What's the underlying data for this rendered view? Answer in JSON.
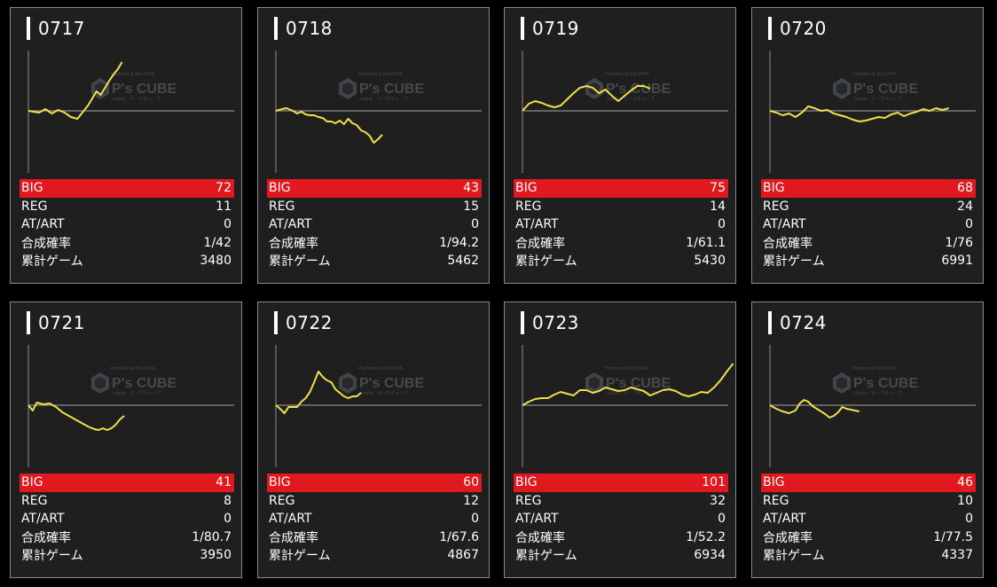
{
  "row_labels": [
    "BIG",
    "REG",
    "AT/ART",
    "合成確率",
    "累計ゲーム"
  ],
  "watermark": {
    "text": "P's CUBE",
    "small_top": "Pachinko & Slot DATA",
    "small_bottom": "ndata　ピーズキューブ"
  },
  "colors": {
    "line": "#f0e04a",
    "big_row": "#e1191e",
    "card_bg": "#1f1f1f",
    "border": "#8a8a8a"
  },
  "machines": [
    {
      "id": "0717",
      "stats": [
        "72",
        "11",
        "0",
        "1/42",
        "3480"
      ],
      "line": [
        [
          0,
          0
        ],
        [
          5,
          2
        ],
        [
          8,
          -2
        ],
        [
          11,
          3
        ],
        [
          14,
          -1
        ],
        [
          17,
          2
        ],
        [
          20,
          7
        ],
        [
          23,
          9
        ],
        [
          26,
          0
        ],
        [
          28,
          -6
        ],
        [
          30,
          -14
        ],
        [
          32,
          -22
        ],
        [
          34,
          -18
        ],
        [
          36,
          -26
        ],
        [
          38,
          -34
        ],
        [
          40,
          -41
        ],
        [
          42,
          -47
        ],
        [
          44,
          -55
        ]
      ]
    },
    {
      "id": "0718",
      "stats": [
        "43",
        "15",
        "0",
        "1/94.2",
        "5462"
      ],
      "line": [
        [
          0,
          0
        ],
        [
          3,
          -2
        ],
        [
          5,
          -3
        ],
        [
          8,
          0
        ],
        [
          10,
          3
        ],
        [
          12,
          1
        ],
        [
          14,
          4
        ],
        [
          16,
          5
        ],
        [
          18,
          5
        ],
        [
          20,
          7
        ],
        [
          22,
          8
        ],
        [
          24,
          12
        ],
        [
          26,
          12
        ],
        [
          28,
          14
        ],
        [
          30,
          11
        ],
        [
          32,
          15
        ],
        [
          34,
          9
        ],
        [
          36,
          14
        ],
        [
          38,
          16
        ],
        [
          40,
          22
        ],
        [
          42,
          24
        ],
        [
          44,
          28
        ],
        [
          46,
          36
        ],
        [
          48,
          32
        ],
        [
          50,
          27
        ]
      ]
    },
    {
      "id": "0719",
      "stats": [
        "75",
        "14",
        "0",
        "1/61.1",
        "5430"
      ],
      "line": [
        [
          0,
          0
        ],
        [
          3,
          -8
        ],
        [
          6,
          -11
        ],
        [
          9,
          -9
        ],
        [
          12,
          -6
        ],
        [
          15,
          -4
        ],
        [
          18,
          -6
        ],
        [
          21,
          -13
        ],
        [
          24,
          -20
        ],
        [
          27,
          -26
        ],
        [
          30,
          -28
        ],
        [
          33,
          -26
        ],
        [
          36,
          -20
        ],
        [
          39,
          -24
        ],
        [
          42,
          -17
        ],
        [
          45,
          -11
        ],
        [
          48,
          -17
        ],
        [
          51,
          -23
        ],
        [
          54,
          -28
        ],
        [
          57,
          -28
        ],
        [
          60,
          -25
        ]
      ]
    },
    {
      "id": "0720",
      "stats": [
        "68",
        "24",
        "0",
        "1/76",
        "6991"
      ],
      "line": [
        [
          0,
          0
        ],
        [
          3,
          2
        ],
        [
          6,
          5
        ],
        [
          9,
          3
        ],
        [
          12,
          7
        ],
        [
          15,
          2
        ],
        [
          18,
          -5
        ],
        [
          21,
          -3
        ],
        [
          24,
          0
        ],
        [
          27,
          -1
        ],
        [
          30,
          3
        ],
        [
          33,
          5
        ],
        [
          36,
          7
        ],
        [
          39,
          10
        ],
        [
          42,
          12
        ],
        [
          45,
          11
        ],
        [
          48,
          9
        ],
        [
          51,
          7
        ],
        [
          54,
          8
        ],
        [
          57,
          4
        ],
        [
          60,
          2
        ],
        [
          63,
          6
        ],
        [
          66,
          3
        ],
        [
          69,
          1
        ],
        [
          72,
          -2
        ],
        [
          75,
          0
        ],
        [
          78,
          -3
        ],
        [
          81,
          -1
        ],
        [
          84,
          -3
        ]
      ]
    },
    {
      "id": "0721",
      "stats": [
        "41",
        "8",
        "0",
        "1/80.7",
        "3950"
      ],
      "line": [
        [
          0,
          0
        ],
        [
          2,
          6
        ],
        [
          4,
          -3
        ],
        [
          7,
          -1
        ],
        [
          10,
          -2
        ],
        [
          13,
          2
        ],
        [
          16,
          8
        ],
        [
          19,
          12
        ],
        [
          22,
          16
        ],
        [
          25,
          20
        ],
        [
          28,
          24
        ],
        [
          31,
          27
        ],
        [
          33,
          28
        ],
        [
          35,
          26
        ],
        [
          37,
          28
        ],
        [
          39,
          26
        ],
        [
          41,
          22
        ],
        [
          43,
          16
        ],
        [
          45,
          12
        ]
      ]
    },
    {
      "id": "0722",
      "stats": [
        "60",
        "12",
        "0",
        "1/67.6",
        "4867"
      ],
      "line": [
        [
          0,
          0
        ],
        [
          2,
          4
        ],
        [
          4,
          9
        ],
        [
          6,
          2
        ],
        [
          8,
          2
        ],
        [
          10,
          2
        ],
        [
          12,
          -4
        ],
        [
          14,
          -8
        ],
        [
          16,
          -15
        ],
        [
          18,
          -26
        ],
        [
          20,
          -38
        ],
        [
          22,
          -32
        ],
        [
          24,
          -28
        ],
        [
          26,
          -26
        ],
        [
          28,
          -18
        ],
        [
          30,
          -14
        ],
        [
          32,
          -10
        ],
        [
          34,
          -8
        ],
        [
          36,
          -10
        ],
        [
          38,
          -10
        ],
        [
          40,
          -14
        ]
      ]
    },
    {
      "id": "0723",
      "stats": [
        "101",
        "32",
        "0",
        "1/52.2",
        "6934"
      ],
      "line": [
        [
          0,
          0
        ],
        [
          3,
          -4
        ],
        [
          6,
          -7
        ],
        [
          9,
          -8
        ],
        [
          12,
          -8
        ],
        [
          15,
          -12
        ],
        [
          18,
          -15
        ],
        [
          21,
          -13
        ],
        [
          24,
          -11
        ],
        [
          27,
          -17
        ],
        [
          30,
          -17
        ],
        [
          33,
          -14
        ],
        [
          36,
          -16
        ],
        [
          39,
          -20
        ],
        [
          42,
          -18
        ],
        [
          45,
          -16
        ],
        [
          48,
          -17
        ],
        [
          51,
          -20
        ],
        [
          54,
          -18
        ],
        [
          57,
          -16
        ],
        [
          60,
          -11
        ],
        [
          63,
          -14
        ],
        [
          66,
          -17
        ],
        [
          69,
          -18
        ],
        [
          72,
          -16
        ],
        [
          75,
          -12
        ],
        [
          78,
          -10
        ],
        [
          81,
          -12
        ],
        [
          84,
          -15
        ],
        [
          87,
          -14
        ],
        [
          90,
          -20
        ],
        [
          93,
          -28
        ],
        [
          96,
          -38
        ],
        [
          99,
          -47
        ]
      ]
    },
    {
      "id": "0724",
      "stats": [
        "46",
        "10",
        "0",
        "1/77.5",
        "4337"
      ],
      "line": [
        [
          0,
          0
        ],
        [
          3,
          4
        ],
        [
          6,
          7
        ],
        [
          9,
          9
        ],
        [
          12,
          6
        ],
        [
          14,
          -2
        ],
        [
          16,
          -6
        ],
        [
          18,
          -4
        ],
        [
          20,
          1
        ],
        [
          22,
          4
        ],
        [
          24,
          7
        ],
        [
          26,
          10
        ],
        [
          28,
          14
        ],
        [
          30,
          12
        ],
        [
          32,
          8
        ],
        [
          34,
          2
        ],
        [
          36,
          4
        ],
        [
          38,
          5
        ],
        [
          40,
          6
        ],
        [
          42,
          7
        ]
      ]
    }
  ]
}
